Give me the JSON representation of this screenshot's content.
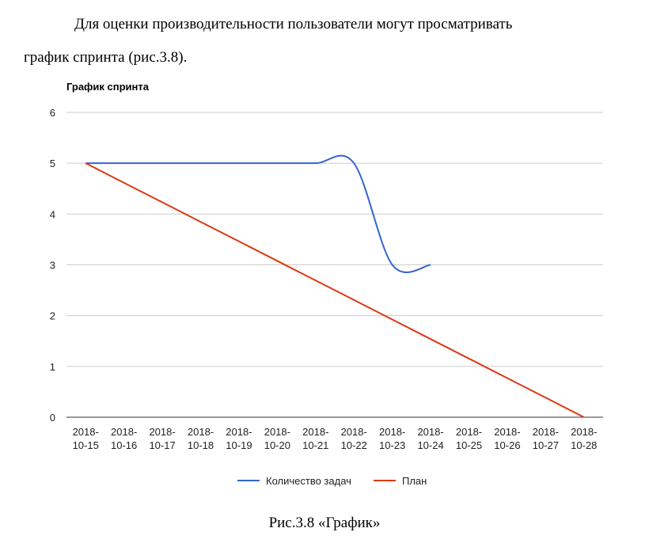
{
  "paragraph": {
    "line1": "Для оценки производительности пользователи могут просматривать",
    "line2": "график спринта (рис.3.8)."
  },
  "caption": "Рис.3.8 «График»",
  "chart_data": {
    "type": "line",
    "title": "График спринта",
    "xlabel": "",
    "ylabel": "",
    "x": [
      "2018-10-15",
      "2018-10-16",
      "2018-10-17",
      "2018-10-18",
      "2018-10-19",
      "2018-10-20",
      "2018-10-21",
      "2018-10-22",
      "2018-10-23",
      "2018-10-24",
      "2018-10-25",
      "2018-10-26",
      "2018-10-27",
      "2018-10-28"
    ],
    "x_tick_labels": [
      [
        "2018-",
        "10-15"
      ],
      [
        "2018-",
        "10-16"
      ],
      [
        "2018-",
        "10-17"
      ],
      [
        "2018-",
        "10-18"
      ],
      [
        "2018-",
        "10-19"
      ],
      [
        "2018-",
        "10-20"
      ],
      [
        "2018-",
        "10-21"
      ],
      [
        "2018-",
        "10-22"
      ],
      [
        "2018-",
        "10-23"
      ],
      [
        "2018-",
        "10-24"
      ],
      [
        "2018-",
        "10-25"
      ],
      [
        "2018-",
        "10-26"
      ],
      [
        "2018-",
        "10-27"
      ],
      [
        "2018-",
        "10-28"
      ]
    ],
    "ylim": [
      0,
      6
    ],
    "y_ticks": [
      0,
      1,
      2,
      3,
      4,
      5,
      6
    ],
    "grid": true,
    "legend_position": "bottom",
    "series": [
      {
        "name": "Количество задач",
        "color": "#3366cc",
        "smooth": true,
        "values": [
          5,
          5,
          5,
          5,
          5,
          5,
          5,
          5,
          3,
          3,
          null,
          null,
          null,
          null
        ]
      },
      {
        "name": "План",
        "color": "#dc3912",
        "smooth": false,
        "values": [
          5,
          4.615,
          4.231,
          3.846,
          3.462,
          3.077,
          2.692,
          2.308,
          1.923,
          1.538,
          1.154,
          0.769,
          0.385,
          0
        ]
      }
    ]
  }
}
